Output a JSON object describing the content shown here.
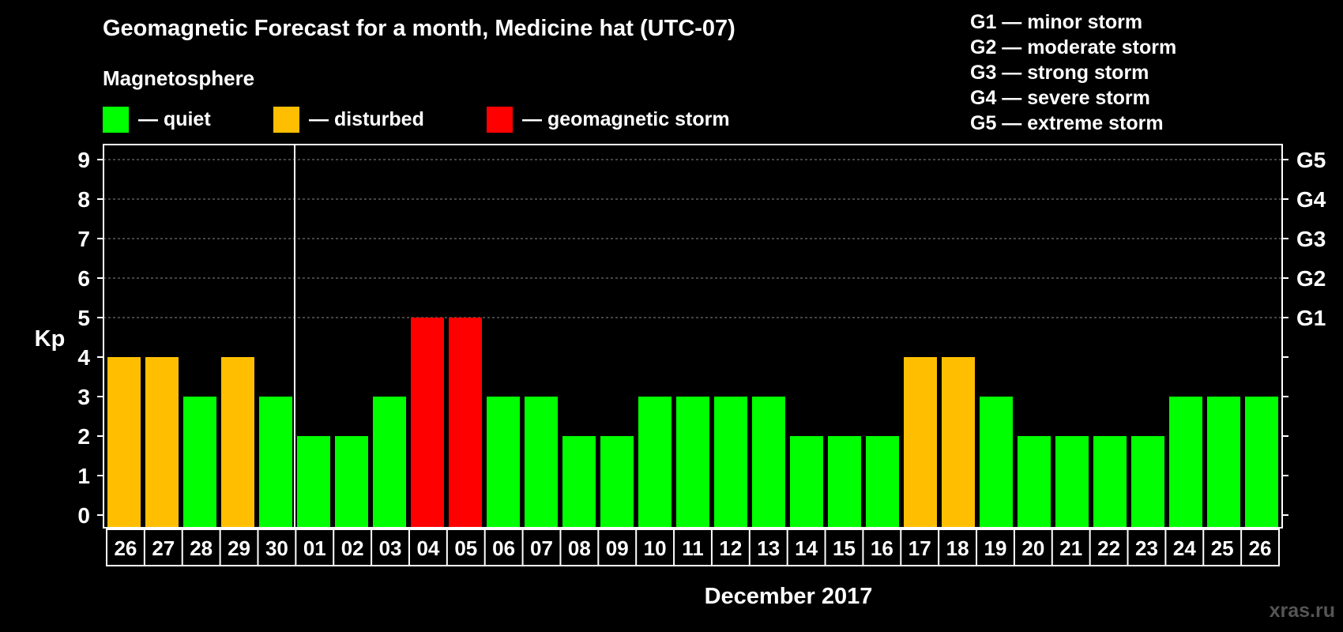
{
  "chart_data": {
    "type": "bar",
    "title": "Geomagnetic Forecast for a month, Medicine hat (UTC-07)",
    "subtitle": "Magnetosphere",
    "ylabel": "Kp",
    "xlabel": "December 2017",
    "ylim": [
      0,
      9
    ],
    "yticks": [
      "0",
      "1",
      "2",
      "3",
      "4",
      "5",
      "6",
      "7",
      "8",
      "9"
    ],
    "right_ticks": [
      {
        "kp": 5,
        "label": "G1"
      },
      {
        "kp": 6,
        "label": "G2"
      },
      {
        "kp": 7,
        "label": "G3"
      },
      {
        "kp": 8,
        "label": "G4"
      },
      {
        "kp": 9,
        "label": "G5"
      }
    ],
    "categories": [
      "26",
      "27",
      "28",
      "29",
      "30",
      "01",
      "02",
      "03",
      "04",
      "05",
      "06",
      "07",
      "08",
      "09",
      "10",
      "11",
      "12",
      "13",
      "14",
      "15",
      "16",
      "17",
      "18",
      "19",
      "20",
      "21",
      "22",
      "23",
      "24",
      "25",
      "26"
    ],
    "values": [
      4,
      4,
      3,
      4,
      3,
      2,
      2,
      3,
      5,
      5,
      3,
      3,
      2,
      2,
      3,
      3,
      3,
      3,
      2,
      2,
      2,
      4,
      4,
      3,
      2,
      2,
      2,
      2,
      3,
      3,
      3
    ],
    "month_divider_after_index": 4,
    "legend": [
      {
        "label": "— quiet",
        "color": "#00ff00"
      },
      {
        "label": "— disturbed",
        "color": "#ffbf00"
      },
      {
        "label": "— geomagnetic storm",
        "color": "#ff0000"
      }
    ],
    "thresholds": {
      "disturbed_from": 4,
      "storm_from": 5
    }
  },
  "storm_scale": [
    "G1 — minor storm",
    "G2 — moderate storm",
    "G3 — strong storm",
    "G4 — severe storm",
    "G5 — extreme storm"
  ],
  "watermark": "xras.ru"
}
